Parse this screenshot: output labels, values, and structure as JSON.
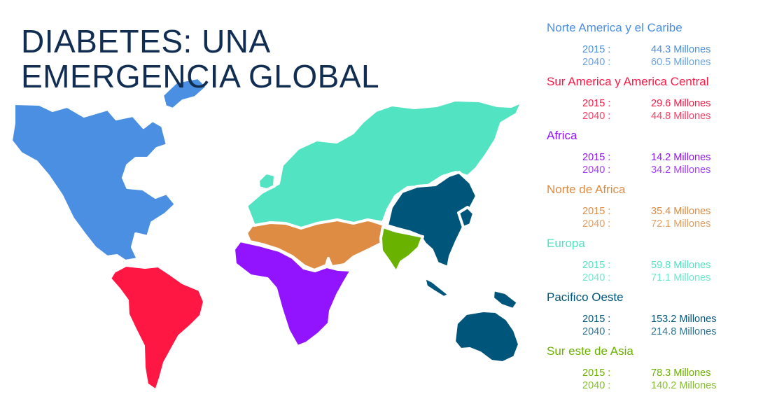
{
  "title": {
    "line1": "DIABETES: UNA",
    "line2": "EMERGENCIA GLOBAL"
  },
  "colors": {
    "title": "#112d52",
    "north_america": "#4a8fe2",
    "south_america": "#ff1744",
    "africa": "#9214ff",
    "north_africa": "#de8b43",
    "europe": "#52e3c2",
    "western_pacific": "#00557a",
    "southeast_asia": "#6ab200"
  },
  "regions": [
    {
      "name": "Norte America y el Caribe",
      "color": "#4a8fe2",
      "year_2015": "2015 :",
      "value_2015": "44.3 Millones",
      "year_2040": "2040 :",
      "value_2040": "60.5 Millones"
    },
    {
      "name": "Sur America y America Central",
      "color": "#ff1744",
      "year_2015": "2015 :",
      "value_2015": "29.6 Millones",
      "year_2040": "2040 :",
      "value_2040": "44.8 Millones"
    },
    {
      "name": "Africa",
      "color": "#9214ff",
      "year_2015": "2015 :",
      "value_2015": "14.2 Millones",
      "year_2040": "2040 :",
      "value_2040": "34.2 Millones"
    },
    {
      "name": "Norte de Africa",
      "color": "#de8b43",
      "year_2015": "2015 :",
      "value_2015": "35.4 Millones",
      "year_2040": "2040 :",
      "value_2040": "72.1 Millones"
    },
    {
      "name": "Europa",
      "color": "#52e3c2",
      "year_2015": "2015 :",
      "value_2015": "59.8 Millones",
      "year_2040": "2040 :",
      "value_2040": "71.1 Millones"
    },
    {
      "name": "Pacifico Oeste",
      "color": "#00557a",
      "year_2015": "2015 :",
      "value_2015": "153.2 Millones",
      "year_2040": "2040 :",
      "value_2040": "214.8 Millones"
    },
    {
      "name": "Sur este de Asia",
      "color": "#6ab200",
      "year_2015": "2015 :",
      "value_2015": "78.3   Millones",
      "year_2040": "2040 :",
      "value_2040": "140.2 Millones"
    }
  ]
}
